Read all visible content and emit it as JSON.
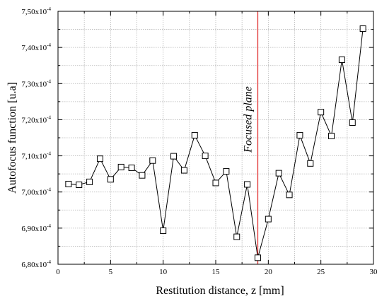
{
  "chart_data": {
    "type": "line",
    "xlabel": "Restitution distance, z [mm]",
    "ylabel": "Autofocus function [u.a]",
    "xlim": [
      0,
      30
    ],
    "ylim": [
      6.8,
      7.5
    ],
    "y_exponent": "-4",
    "x_ticks": [
      0,
      5,
      10,
      15,
      20,
      25,
      30
    ],
    "x_tick_labels": [
      "0",
      "5",
      "10",
      "15",
      "20",
      "25",
      "30"
    ],
    "y_ticks": [
      6.8,
      6.9,
      7.0,
      7.1,
      7.2,
      7.3,
      7.4,
      7.5
    ],
    "y_tick_labels": [
      "6,80x10",
      "6,90x10",
      "7,00x10",
      "7,10x10",
      "7,20x10",
      "7,30x10",
      "7,40x10",
      "7,50x10"
    ],
    "grid": true,
    "series": [
      {
        "marker": "open-square",
        "color": "#000000",
        "x": [
          1,
          2,
          3,
          4,
          5,
          6,
          7,
          8,
          9,
          10,
          11,
          12,
          13,
          14,
          15,
          16,
          17,
          18,
          19,
          20,
          21,
          22,
          23,
          24,
          25,
          26,
          27,
          28,
          29
        ],
        "y": [
          7.022,
          7.02,
          7.028,
          7.092,
          7.035,
          7.069,
          7.067,
          7.046,
          7.087,
          6.893,
          7.099,
          7.06,
          7.157,
          7.1,
          7.025,
          7.057,
          6.876,
          7.021,
          6.818,
          6.925,
          7.052,
          6.992,
          7.157,
          7.079,
          7.221,
          7.155,
          7.366,
          7.192,
          7.452
        ]
      }
    ],
    "annotation": {
      "text": "Focused plane",
      "x": 19,
      "color": "#e03030"
    }
  }
}
